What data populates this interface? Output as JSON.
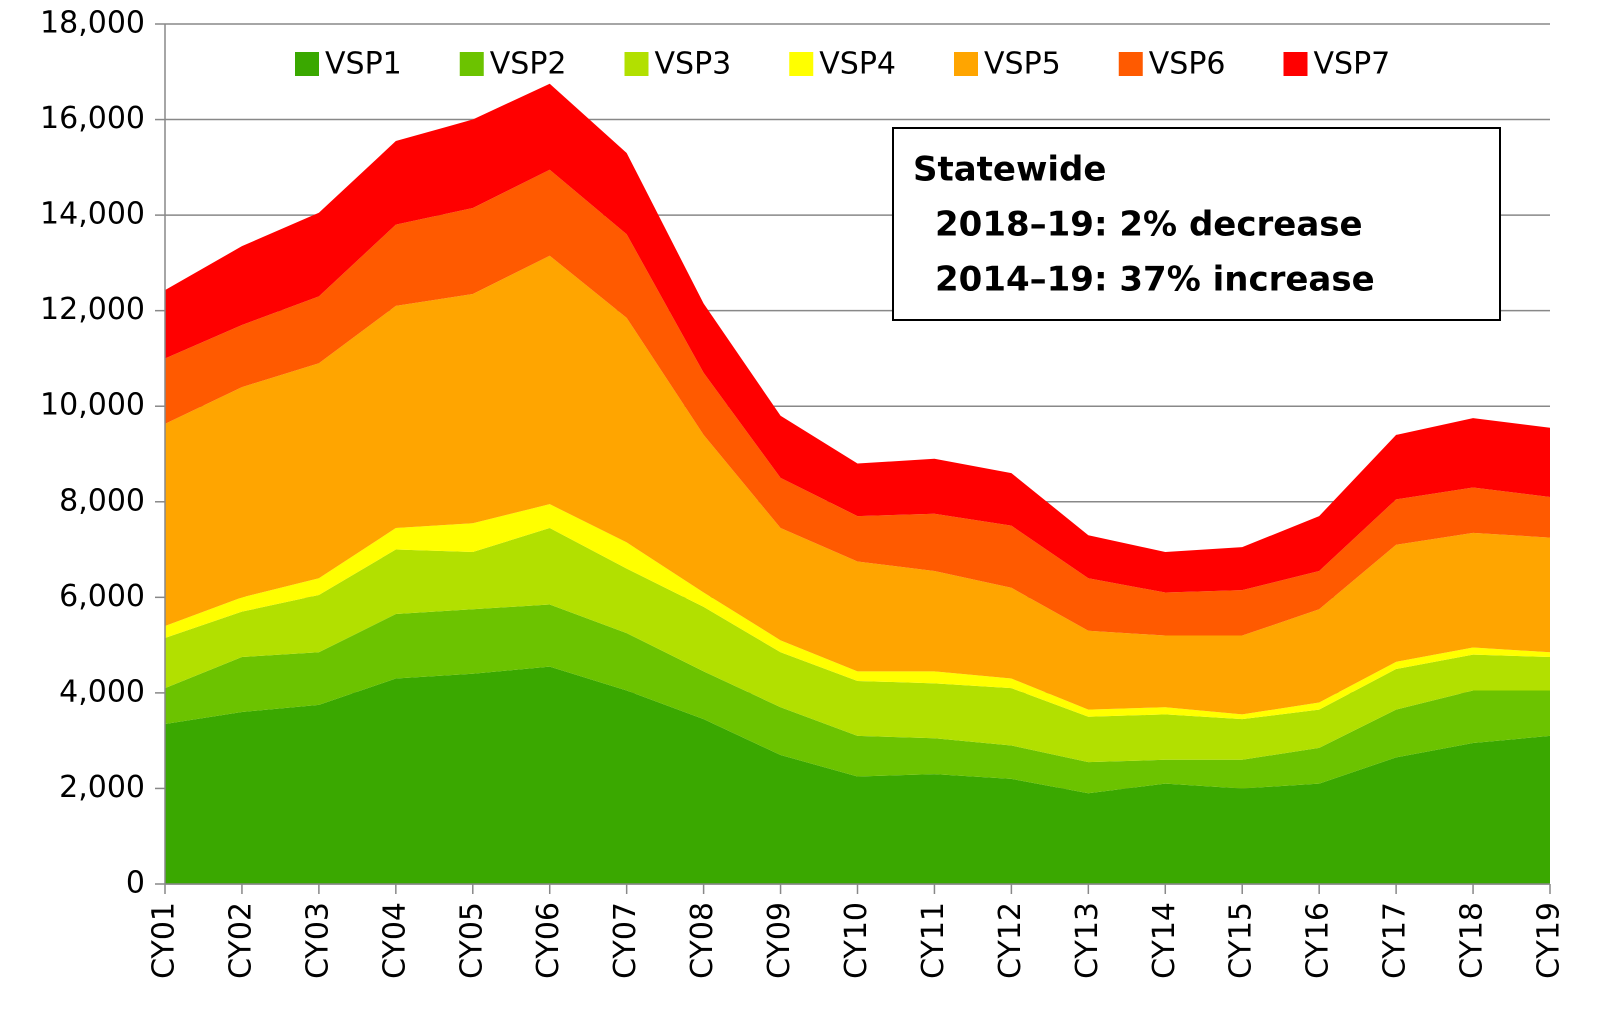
{
  "chart_data": {
    "type": "stacked-area",
    "categories": [
      "CY01",
      "CY02",
      "CY03",
      "CY04",
      "CY05",
      "CY06",
      "CY07",
      "CY08",
      "CY09",
      "CY10",
      "CY11",
      "CY12",
      "CY13",
      "CY14",
      "CY15",
      "CY16",
      "CY17",
      "CY18",
      "CY19"
    ],
    "series": [
      {
        "name": "VSP1",
        "color": "#3aa800",
        "values": [
          3350,
          3600,
          3750,
          4300,
          4400,
          4550,
          4050,
          3450,
          2700,
          2250,
          2300,
          2200,
          1900,
          2100,
          2000,
          2100,
          2650,
          2950,
          3100
        ]
      },
      {
        "name": "VSP2",
        "color": "#6cc300",
        "values": [
          750,
          1150,
          1100,
          1350,
          1350,
          1300,
          1200,
          1000,
          1000,
          850,
          750,
          700,
          650,
          500,
          600,
          750,
          1000,
          1100,
          950
        ]
      },
      {
        "name": "VSP3",
        "color": "#b2e000",
        "values": [
          1050,
          950,
          1200,
          1350,
          1200,
          1600,
          1350,
          1350,
          1150,
          1150,
          1150,
          1200,
          950,
          950,
          850,
          800,
          850,
          750,
          700
        ]
      },
      {
        "name": "VSP4",
        "color": "#ffff00",
        "values": [
          250,
          300,
          350,
          450,
          600,
          500,
          550,
          300,
          250,
          200,
          250,
          200,
          150,
          150,
          100,
          150,
          150,
          150,
          100
        ]
      },
      {
        "name": "VSP5",
        "color": "#ffa500",
        "values": [
          4230,
          4400,
          4500,
          4650,
          4800,
          5200,
          4700,
          3300,
          2350,
          2300,
          2100,
          1900,
          1650,
          1500,
          1650,
          1950,
          2450,
          2400,
          2400
        ]
      },
      {
        "name": "VSP6",
        "color": "#ff5a00",
        "values": [
          1370,
          1300,
          1400,
          1700,
          1800,
          1800,
          1750,
          1300,
          1050,
          950,
          1200,
          1300,
          1100,
          900,
          950,
          800,
          950,
          950,
          850
        ]
      },
      {
        "name": "VSP7",
        "color": "#ff0000",
        "values": [
          1430,
          1650,
          1750,
          1750,
          1850,
          1800,
          1700,
          1450,
          1300,
          1100,
          1150,
          1100,
          900,
          850,
          900,
          1150,
          1350,
          1450,
          1450
        ]
      }
    ],
    "ylim": [
      0,
      18000
    ],
    "yticks": [
      0,
      {
        "value": 2000,
        "label": "2,000"
      },
      {
        "value": 4000,
        "label": "4,000"
      },
      {
        "value": 6000,
        "label": "6,000"
      },
      {
        "value": 8000,
        "label": "8,000"
      },
      {
        "value": 10000,
        "label": "10,000"
      },
      {
        "value": 12000,
        "label": "12,000"
      },
      {
        "value": 14000,
        "label": "14,000"
      },
      {
        "value": 16000,
        "label": "16,000"
      },
      {
        "value": 18000,
        "label": "18,000"
      }
    ],
    "grid": true,
    "legend": "top",
    "annotations": [
      "Statewide",
      "2018–19: 2% decrease",
      "2014–19: 37% increase"
    ]
  }
}
